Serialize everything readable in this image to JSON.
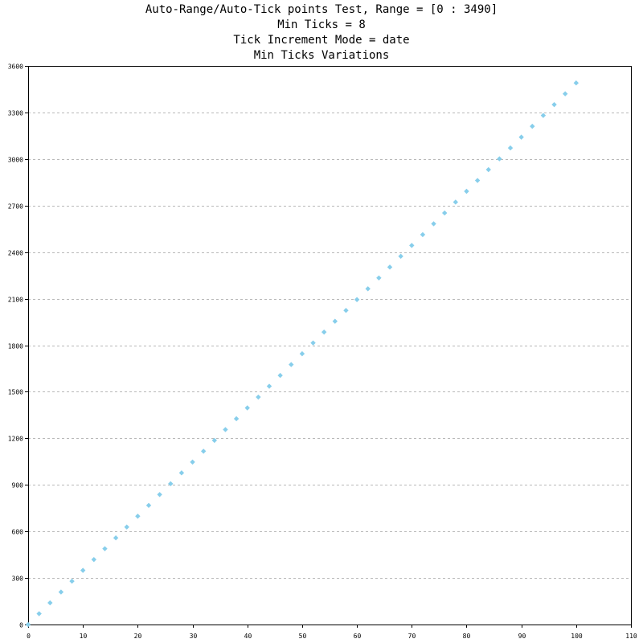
{
  "chart_data": {
    "type": "scatter",
    "title_lines": [
      "Auto-Range/Auto-Tick points Test, Range = [0 : 3490]",
      "Min Ticks = 8",
      "Tick Increment Mode = date",
      "Min Ticks Variations"
    ],
    "xlabel": "",
    "ylabel": "",
    "xlim": [
      0,
      110
    ],
    "ylim": [
      0,
      3600
    ],
    "x_ticks": [
      0,
      10,
      20,
      30,
      40,
      50,
      60,
      70,
      80,
      90,
      100,
      110
    ],
    "y_ticks": [
      0,
      300,
      600,
      900,
      1200,
      1500,
      1800,
      2100,
      2400,
      2700,
      3000,
      3300,
      3600
    ],
    "grid": "horizontal dashed",
    "legend": "none",
    "marker": "diamond",
    "marker_color": "#87ceeb",
    "series": [
      {
        "x": [
          0,
          2,
          4,
          6,
          8,
          10,
          12,
          14,
          16,
          18,
          20,
          22,
          24,
          26,
          28,
          30,
          32,
          34,
          36,
          38,
          40,
          42,
          44,
          46,
          48,
          50,
          52,
          54,
          56,
          58,
          60,
          62,
          64,
          66,
          68,
          70,
          72,
          74,
          76,
          78,
          80,
          82,
          84,
          86,
          88,
          90,
          92,
          94,
          96,
          98,
          100
        ],
        "y": [
          0,
          69.8,
          139.6,
          209.4,
          279.2,
          349,
          418.8,
          488.6,
          558.4,
          628.2,
          698,
          767.8,
          837.6,
          907.4,
          977.2,
          1047,
          1116.8,
          1186.6,
          1256.4,
          1326.2,
          1396,
          1465.8,
          1535.6,
          1605.4,
          1675.2,
          1745,
          1814.8,
          1884.6,
          1954.4,
          2024.2,
          2094,
          2163.8,
          2233.6,
          2303.4,
          2373.2,
          2443,
          2512.8,
          2582.6,
          2652.4,
          2722.2,
          2792,
          2861.8,
          2931.6,
          3001.4,
          3071.2,
          3141,
          3210.8,
          3280.6,
          3350.4,
          3420.2,
          3490
        ]
      }
    ]
  }
}
